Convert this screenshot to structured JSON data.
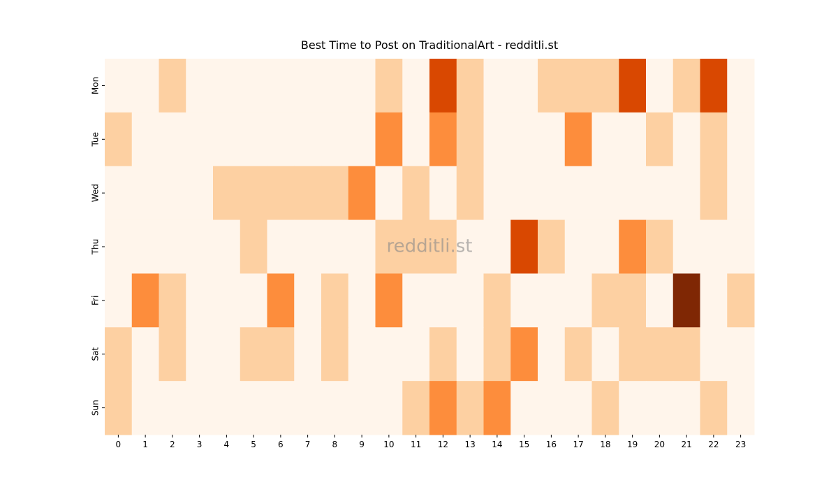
{
  "chart_data": {
    "type": "heatmap",
    "title": "Best Time to Post on TraditionalArt - redditli.st",
    "watermark": "redditli.st",
    "x": [
      0,
      1,
      2,
      3,
      4,
      5,
      6,
      7,
      8,
      9,
      10,
      11,
      12,
      13,
      14,
      15,
      16,
      17,
      18,
      19,
      20,
      21,
      22,
      23
    ],
    "categories": [
      "Mon",
      "Tue",
      "Wed",
      "Thu",
      "Fri",
      "Sat",
      "Sun"
    ],
    "values": [
      [
        0,
        0,
        1,
        0,
        0,
        0,
        0,
        0,
        0,
        0,
        1,
        0,
        3,
        1,
        0,
        0,
        1,
        1,
        1,
        3,
        0,
        1,
        3,
        0
      ],
      [
        1,
        0,
        0,
        0,
        0,
        0,
        0,
        0,
        0,
        0,
        2,
        0,
        2,
        1,
        0,
        0,
        0,
        2,
        0,
        0,
        1,
        0,
        1,
        0
      ],
      [
        0,
        0,
        0,
        0,
        1,
        1,
        1,
        1,
        1,
        2,
        0,
        1,
        0,
        1,
        0,
        0,
        0,
        0,
        0,
        0,
        0,
        0,
        1,
        0
      ],
      [
        0,
        0,
        0,
        0,
        0,
        1,
        0,
        0,
        0,
        0,
        1,
        1,
        1,
        0,
        0,
        3,
        1,
        0,
        0,
        2,
        1,
        0,
        0,
        0
      ],
      [
        0,
        2,
        1,
        0,
        0,
        0,
        2,
        0,
        1,
        0,
        2,
        0,
        0,
        0,
        1,
        0,
        0,
        0,
        1,
        1,
        0,
        4,
        0,
        1
      ],
      [
        1,
        0,
        1,
        0,
        0,
        1,
        1,
        0,
        1,
        0,
        0,
        0,
        1,
        0,
        1,
        2,
        0,
        1,
        0,
        1,
        1,
        1,
        0,
        0
      ],
      [
        1,
        0,
        0,
        0,
        0,
        0,
        0,
        0,
        0,
        0,
        0,
        1,
        2,
        1,
        2,
        0,
        0,
        0,
        1,
        0,
        0,
        0,
        1,
        0
      ]
    ],
    "colors": [
      "#fff5eb",
      "#fdd0a2",
      "#fd8d3c",
      "#d94801",
      "#7f2704"
    ]
  }
}
